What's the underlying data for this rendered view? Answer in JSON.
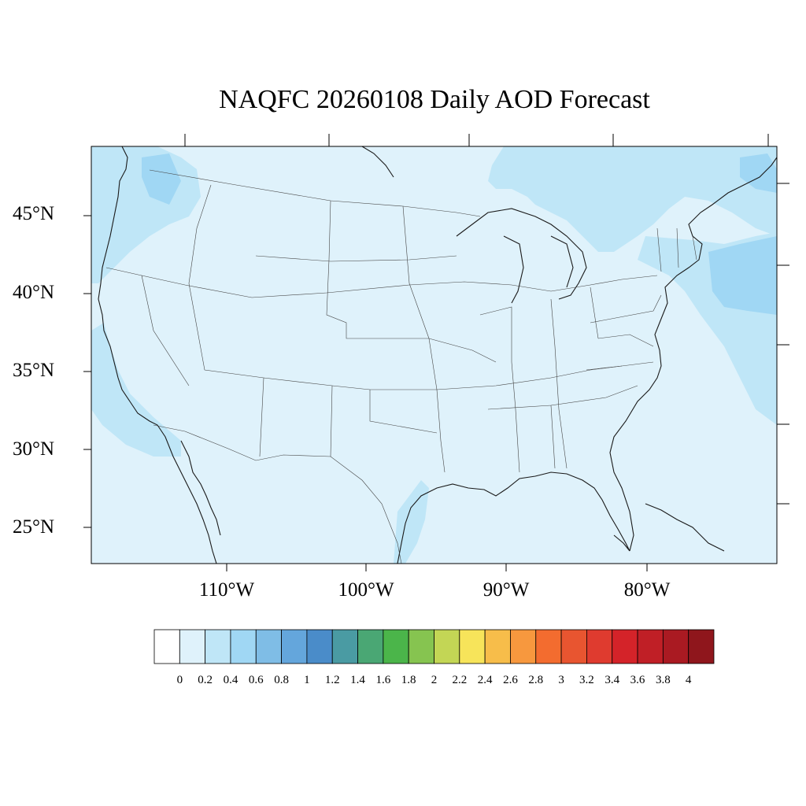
{
  "title": "NAQFC 20260108 Daily AOD Forecast",
  "map": {
    "region": "Contiguous United States",
    "fields": "aerosol optical depth",
    "background_color": "#dff2fb",
    "land_border_color": "#333333",
    "lat_labels": [
      "45°N",
      "40°N",
      "35°N",
      "30°N",
      "25°N"
    ],
    "lon_labels": [
      "110°W",
      "100°W",
      "90°W",
      "80°W"
    ]
  },
  "colorbar": {
    "labels": [
      "0",
      "0.2",
      "0.4",
      "0.6",
      "0.8",
      "1",
      "1.2",
      "1.4",
      "1.6",
      "1.8",
      "2",
      "2.2",
      "2.4",
      "2.6",
      "2.8",
      "3",
      "3.2",
      "3.4",
      "3.6",
      "3.8",
      "4"
    ],
    "colors": [
      "#ffffff",
      "#dff2fb",
      "#bfe6f7",
      "#a0d7f4",
      "#7fbde6",
      "#64a6dc",
      "#4a8cc9",
      "#4a9ba3",
      "#4aa774",
      "#4bb54a",
      "#86c450",
      "#c3d655",
      "#f7e45a",
      "#f7bd4a",
      "#f7983e",
      "#f36c2f",
      "#e85530",
      "#df3b2f",
      "#d42329",
      "#c01f26",
      "#aa1a22",
      "#8f161c"
    ]
  }
}
